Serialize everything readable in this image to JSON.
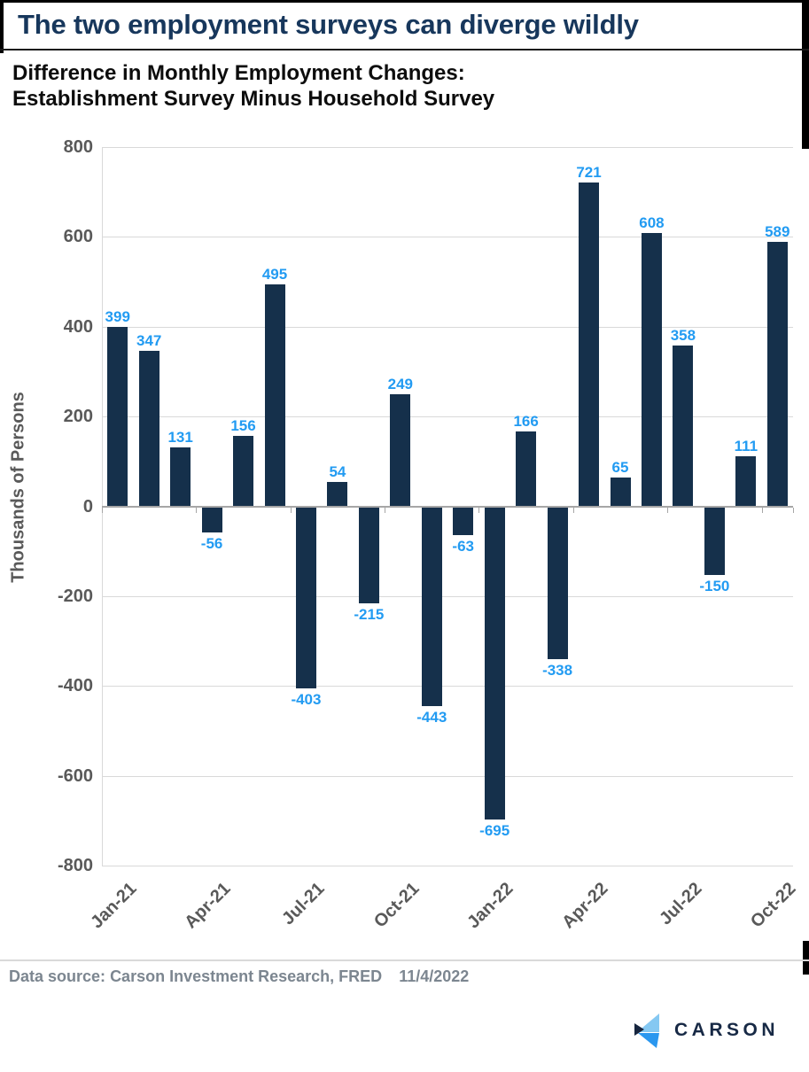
{
  "header": {
    "title": "The two employment surveys can diverge wildly",
    "subtitle_line1": "Difference in Monthly Employment Changes:",
    "subtitle_line2": "Establishment Survey Minus Household Survey"
  },
  "chart_data": {
    "type": "bar",
    "title": "Difference in Monthly Employment Changes: Establishment Survey Minus Household Survey",
    "x": [
      "Jan-21",
      "Feb-21",
      "Mar-21",
      "Apr-21",
      "May-21",
      "Jun-21",
      "Jul-21",
      "Aug-21",
      "Sep-21",
      "Oct-21",
      "Nov-21",
      "Dec-21",
      "Jan-22",
      "Feb-22",
      "Mar-22",
      "Apr-22",
      "May-22",
      "Jun-22",
      "Jul-22",
      "Aug-22",
      "Sep-22",
      "Oct-22"
    ],
    "values": [
      399,
      347,
      131,
      -56,
      156,
      495,
      -403,
      54,
      -215,
      249,
      -443,
      -63,
      -695,
      166,
      -338,
      721,
      65,
      608,
      358,
      -150,
      111,
      589
    ],
    "x_tick_labels": [
      "Jan-21",
      "Apr-21",
      "Jul-21",
      "Oct-21",
      "Jan-22",
      "Apr-22",
      "Jul-22",
      "Oct-22"
    ],
    "x_tick_every": 3,
    "xlabel": "",
    "ylabel": "Thousands of Persons",
    "ylim": [
      -800,
      800
    ],
    "yticks": [
      800,
      600,
      400,
      200,
      0,
      -200,
      -400,
      -600,
      -800
    ],
    "grid": true,
    "legend": false,
    "bar_color": "#15304b",
    "data_label_color": "#229bf2",
    "axis_text_color": "#595959",
    "gridline_color": "#d9d9d9",
    "zero_line_color": "#a6a6a6"
  },
  "footer": {
    "source_label": "Data source:",
    "source_value": "Carson Investment Research, FRED",
    "date": "11/4/2022"
  },
  "logo": {
    "text": "CARSON",
    "mark_colors": {
      "light": "#85c8f2",
      "mid": "#2a97ef",
      "dark": "#16253e"
    }
  }
}
